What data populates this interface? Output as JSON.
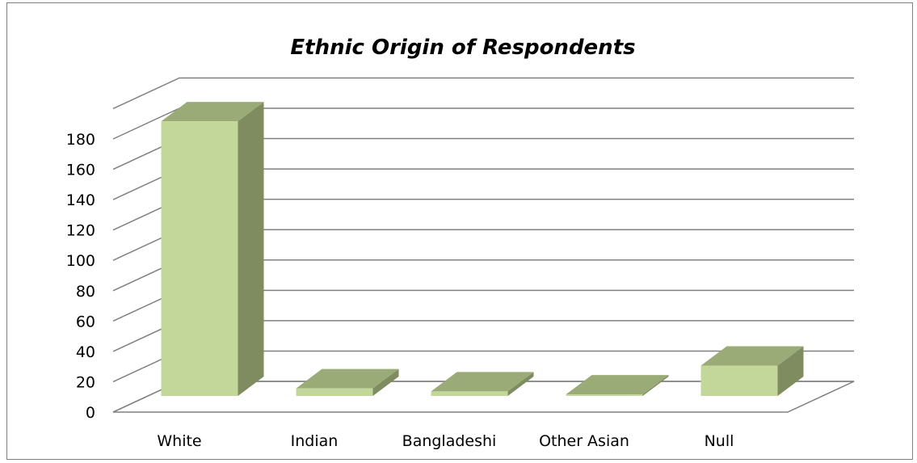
{
  "chart_data": {
    "type": "bar",
    "title": "Ethnic Origin of Respondents",
    "xlabel": "",
    "ylabel": "",
    "categories": [
      "White",
      "Indian",
      "Bangladeshi",
      "Other Asian",
      "Null"
    ],
    "values": [
      181,
      5,
      3,
      1,
      20
    ],
    "ylim": [
      0,
      180
    ],
    "yticks": [
      0,
      20,
      40,
      60,
      80,
      100,
      120,
      140,
      160,
      180
    ],
    "grid": true,
    "legend": "none",
    "style": "3d-column",
    "colors": {
      "front": "#c4d79b",
      "top": "#9bab78",
      "side": "#7f8c60",
      "grid": "#808080"
    }
  }
}
